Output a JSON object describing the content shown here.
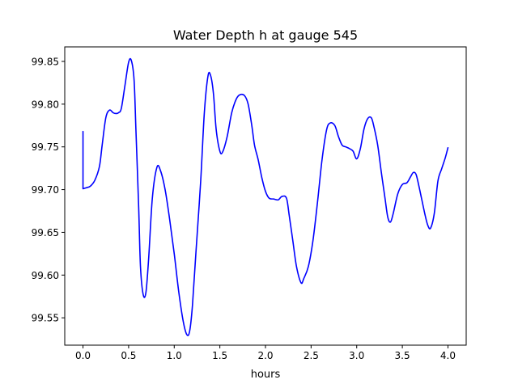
{
  "chart_data": {
    "type": "line",
    "title": "Water Depth h at gauge 545",
    "xlabel": "hours",
    "ylabel": "",
    "xlim": [
      -0.2,
      4.2
    ],
    "ylim": [
      99.518,
      99.867
    ],
    "x_ticks": [
      0.0,
      0.5,
      1.0,
      1.5,
      2.0,
      2.5,
      3.0,
      3.5,
      4.0
    ],
    "x_tick_labels": [
      "0.0",
      "0.5",
      "1.0",
      "1.5",
      "2.0",
      "2.5",
      "3.0",
      "3.5",
      "4.0"
    ],
    "y_ticks": [
      99.55,
      99.6,
      99.65,
      99.7,
      99.75,
      99.8,
      99.85
    ],
    "y_tick_labels": [
      "99.55",
      "99.60",
      "99.65",
      "99.70",
      "99.75",
      "99.80",
      "99.85"
    ],
    "grid": false,
    "series": [
      {
        "color": "#0000ff",
        "x": [
          0.0,
          0.0,
          0.03,
          0.08,
          0.13,
          0.18,
          0.21,
          0.25,
          0.29,
          0.33,
          0.36,
          0.39,
          0.42,
          0.46,
          0.5,
          0.53,
          0.56,
          0.58,
          0.61,
          0.63,
          0.66,
          0.69,
          0.72,
          0.76,
          0.81,
          0.85,
          0.9,
          0.95,
          1.0,
          1.05,
          1.1,
          1.14,
          1.17,
          1.2,
          1.24,
          1.29,
          1.33,
          1.37,
          1.4,
          1.43,
          1.46,
          1.5,
          1.53,
          1.58,
          1.63,
          1.68,
          1.72,
          1.77,
          1.81,
          1.85,
          1.88,
          1.92,
          1.96,
          2.0,
          2.04,
          2.09,
          2.14,
          2.18,
          2.23,
          2.26,
          2.3,
          2.34,
          2.39,
          2.42,
          2.47,
          2.52,
          2.57,
          2.62,
          2.67,
          2.71,
          2.76,
          2.8,
          2.84,
          2.88,
          2.92,
          2.96,
          3.0,
          3.04,
          3.08,
          3.12,
          3.16,
          3.19,
          3.23,
          3.27,
          3.31,
          3.34,
          3.37,
          3.4,
          3.45,
          3.5,
          3.55,
          3.59,
          3.62,
          3.65,
          3.68,
          3.71,
          3.75,
          3.78,
          3.81,
          3.85,
          3.89,
          3.93,
          3.97,
          4.0
        ],
        "y": [
          99.768,
          99.701,
          99.702,
          99.704,
          99.711,
          99.727,
          99.752,
          99.784,
          99.793,
          99.79,
          99.789,
          99.79,
          99.795,
          99.822,
          99.849,
          99.851,
          99.828,
          99.77,
          99.68,
          99.61,
          99.577,
          99.58,
          99.62,
          99.69,
          99.726,
          99.722,
          99.7,
          99.665,
          99.625,
          99.58,
          99.545,
          99.53,
          99.535,
          99.565,
          99.63,
          99.71,
          99.79,
          99.833,
          99.833,
          99.812,
          99.77,
          99.745,
          99.744,
          99.762,
          99.79,
          99.806,
          99.811,
          99.81,
          99.8,
          99.775,
          99.752,
          99.735,
          99.714,
          99.698,
          99.69,
          99.689,
          99.688,
          99.692,
          99.69,
          99.67,
          99.64,
          99.61,
          99.591,
          99.596,
          99.61,
          99.64,
          99.685,
          99.735,
          99.77,
          99.778,
          99.775,
          99.762,
          99.752,
          99.75,
          99.748,
          99.745,
          99.736,
          99.748,
          99.771,
          99.783,
          99.784,
          99.773,
          99.752,
          99.72,
          99.69,
          99.668,
          99.662,
          99.672,
          99.695,
          99.706,
          99.708,
          99.715,
          99.72,
          99.718,
          99.705,
          99.69,
          99.67,
          99.658,
          99.655,
          99.672,
          99.71,
          99.724,
          99.737,
          99.749
        ]
      }
    ]
  }
}
